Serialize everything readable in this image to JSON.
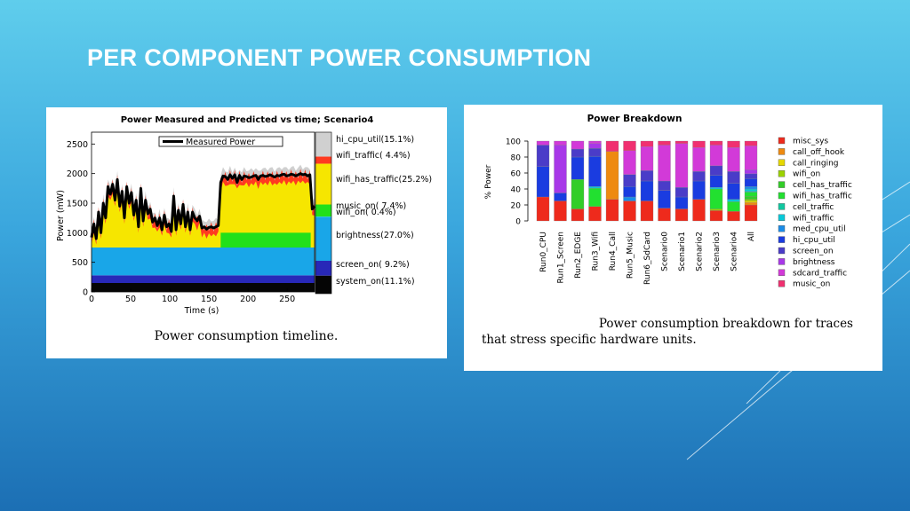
{
  "slide": {
    "title": "PER COMPONENT POWER CONSUMPTION"
  },
  "chart_data": [
    {
      "type": "area",
      "title": "Power Measured and Predicted vs time; Scenario4",
      "xlabel": "Time (s)",
      "ylabel": "Power (mW)",
      "xlim": [
        0,
        285
      ],
      "ylim": [
        0,
        2700
      ],
      "x_ticks": [
        0,
        50,
        100,
        150,
        200,
        250
      ],
      "y_ticks": [
        0,
        500,
        1000,
        1500,
        2000,
        2500
      ],
      "legend": [
        "Measured Power"
      ],
      "legend_position": "top",
      "caption": "Power consumption timeline.",
      "components": [
        {
          "name": "hi_cpu_util",
          "percent": 15.1,
          "label": "hi_cpu_util(15.1%)",
          "color": "#d0d0d0"
        },
        {
          "name": "wifi_traffic",
          "percent": 4.4,
          "label": "wifi_traffic( 4.4%)",
          "color": "#ff3a20"
        },
        {
          "name": "wifi_has_traffic",
          "percent": 25.2,
          "label": "wifi_has_traffic(25.2%)",
          "color": "#f6e600"
        },
        {
          "name": "music_on",
          "percent": 7.4,
          "label": "music_on( 7.4%)",
          "color": "#22e01a"
        },
        {
          "name": "wifi_on",
          "percent": 0.4,
          "label": "wifi_on( 0.4%)",
          "color": "#18c8c8"
        },
        {
          "name": "brightness",
          "percent": 27.0,
          "label": "brightness(27.0%)",
          "color": "#19a6e8"
        },
        {
          "name": "screen_on",
          "percent": 9.2,
          "label": "screen_on( 9.2%)",
          "color": "#2828b8"
        },
        {
          "name": "system_on",
          "percent": 11.1,
          "label": "system_on(11.1%)",
          "color": "#050505"
        }
      ],
      "baseline_layers": [
        {
          "name": "system_on",
          "value": 150
        },
        {
          "name": "screen_on",
          "value": 130
        },
        {
          "name": "brightness",
          "value": 470
        }
      ],
      "music_layer": {
        "x_start": 165,
        "x_end": 280,
        "y_low": 750,
        "y_high": 1000
      },
      "measured_power": {
        "x": [
          0,
          3,
          6,
          9,
          12,
          15,
          18,
          21,
          24,
          27,
          30,
          33,
          36,
          39,
          42,
          45,
          48,
          51,
          54,
          57,
          60,
          63,
          66,
          69,
          72,
          75,
          78,
          81,
          84,
          87,
          90,
          93,
          96,
          99,
          102,
          105,
          108,
          111,
          114,
          117,
          120,
          123,
          126,
          129,
          132,
          135,
          138,
          141,
          144,
          147,
          150,
          153,
          156,
          159,
          162,
          165,
          168,
          171,
          174,
          177,
          180,
          183,
          186,
          189,
          192,
          195,
          198,
          201,
          204,
          207,
          210,
          213,
          216,
          219,
          222,
          225,
          228,
          231,
          234,
          237,
          240,
          243,
          246,
          249,
          252,
          255,
          258,
          261,
          264,
          267,
          270,
          273,
          276,
          279,
          282,
          285
        ],
        "y": [
          920,
          1150,
          900,
          1350,
          1000,
          1500,
          1250,
          1780,
          1650,
          1820,
          1550,
          1900,
          1450,
          1700,
          1250,
          1780,
          1500,
          1680,
          1300,
          1550,
          1100,
          1750,
          1200,
          1550,
          1320,
          1400,
          1180,
          1250,
          1120,
          1250,
          1050,
          1300,
          1100,
          1150,
          1020,
          1620,
          1050,
          1380,
          1150,
          1480,
          1100,
          1350,
          1050,
          1350,
          1250,
          1200,
          1280,
          1080,
          1100,
          1060,
          1090,
          1100,
          1080,
          1100,
          1120,
          1850,
          1960,
          1950,
          1900,
          1980,
          1920,
          1980,
          1850,
          1970,
          1900,
          1960,
          1950,
          1930,
          1940,
          1960,
          1970,
          1900,
          1960,
          1970,
          1950,
          1960,
          1980,
          1960,
          1940,
          1970,
          1960,
          1980,
          1990,
          1960,
          1970,
          1990,
          1980,
          1960,
          1980,
          2000,
          1980,
          1990,
          1960,
          1980,
          1400,
          1450
        ]
      }
    },
    {
      "type": "bar",
      "stacked": true,
      "title": "Power Breakdown",
      "ylabel": "% Power",
      "ylim": [
        0,
        100
      ],
      "y_ticks": [
        0,
        20,
        40,
        60,
        80,
        100
      ],
      "caption_lines": [
        "Power consumption breakdown for traces",
        "that stress specific hardware units."
      ],
      "legend_position": "right",
      "categories": [
        "Run0_CPU",
        "Run1_Screen",
        "Run2_EDGE",
        "Run3_Wifi",
        "Run4_Call",
        "Run5_Music",
        "Run6_SdCard",
        "Scenario0",
        "Scenario1",
        "Scenario2",
        "Scenario3",
        "Scenario4",
        "All"
      ],
      "series": [
        {
          "name": "misc_sys",
          "color": "#ee2a1c",
          "values": [
            30,
            25,
            15,
            18,
            27,
            25,
            25,
            16,
            15,
            27,
            13,
            12,
            20
          ]
        },
        {
          "name": "call_off_hook",
          "color": "#ee8a10",
          "values": [
            0,
            0,
            0,
            0,
            60,
            0,
            0,
            0,
            0,
            0,
            0,
            0,
            3
          ]
        },
        {
          "name": "call_ringing",
          "color": "#e6d800",
          "values": [
            0,
            0,
            0,
            0,
            0,
            0,
            0,
            0,
            0,
            0,
            0,
            0,
            2
          ]
        },
        {
          "name": "wifi_on",
          "color": "#9cd300",
          "values": [
            0,
            0,
            0,
            0,
            0,
            0,
            0,
            0,
            0,
            0,
            2,
            0,
            2
          ]
        },
        {
          "name": "cell_has_traffic",
          "color": "#32cd28",
          "values": [
            0,
            0,
            37,
            0,
            0,
            0,
            0,
            0,
            0,
            0,
            0,
            0,
            4
          ]
        },
        {
          "name": "wifi_has_traffic",
          "color": "#22e030",
          "values": [
            0,
            0,
            0,
            23,
            0,
            0,
            0,
            0,
            0,
            0,
            25,
            12,
            5
          ]
        },
        {
          "name": "cell_traffic",
          "color": "#10c8a0",
          "values": [
            0,
            0,
            0,
            0,
            0,
            0,
            0,
            0,
            0,
            0,
            0,
            0,
            1
          ]
        },
        {
          "name": "wifi_traffic",
          "color": "#08c8d8",
          "values": [
            0,
            0,
            0,
            2,
            0,
            0,
            0,
            0,
            0,
            0,
            2,
            3,
            3
          ]
        },
        {
          "name": "med_cpu_util",
          "color": "#1a8ce8",
          "values": [
            0,
            0,
            0,
            0,
            0,
            5,
            0,
            0,
            0,
            0,
            0,
            0,
            3
          ]
        },
        {
          "name": "hi_cpu_util",
          "color": "#1a3ce0",
          "values": [
            38,
            10,
            28,
            38,
            0,
            13,
            25,
            22,
            15,
            23,
            15,
            20,
            10
          ]
        },
        {
          "name": "screen_on",
          "color": "#4a3cc8",
          "values": [
            27,
            0,
            10,
            10,
            0,
            15,
            13,
            12,
            12,
            12,
            12,
            15,
            6
          ]
        },
        {
          "name": "brightness",
          "color": "#a838e8",
          "values": [
            0,
            60,
            0,
            6,
            0,
            0,
            0,
            0,
            0,
            0,
            0,
            0,
            5
          ]
        },
        {
          "name": "sdcard_traffic",
          "color": "#d23ad8",
          "values": [
            5,
            5,
            10,
            3,
            0,
            30,
            30,
            45,
            55,
            30,
            26,
            30,
            30
          ]
        },
        {
          "name": "music_on",
          "color": "#f03070",
          "values": [
            0,
            0,
            0,
            0,
            13,
            12,
            7,
            5,
            3,
            8,
            5,
            8,
            6
          ]
        }
      ]
    }
  ]
}
